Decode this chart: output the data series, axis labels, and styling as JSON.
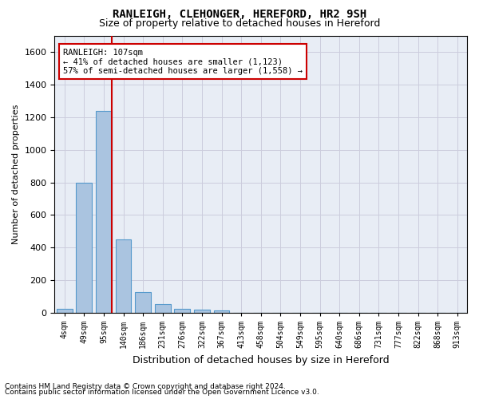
{
  "title": "RANLEIGH, CLEHONGER, HEREFORD, HR2 9SH",
  "subtitle": "Size of property relative to detached houses in Hereford",
  "xlabel": "Distribution of detached houses by size in Hereford",
  "ylabel": "Number of detached properties",
  "bar_values": [
    25,
    800,
    1240,
    450,
    125,
    55,
    25,
    18,
    15,
    0,
    0,
    0,
    0,
    0,
    0,
    0,
    0,
    0,
    0,
    0,
    0
  ],
  "bin_labels": [
    "4sqm",
    "49sqm",
    "95sqm",
    "140sqm",
    "186sqm",
    "231sqm",
    "276sqm",
    "322sqm",
    "367sqm",
    "413sqm",
    "458sqm",
    "504sqm",
    "549sqm",
    "595sqm",
    "640sqm",
    "686sqm",
    "731sqm",
    "777sqm",
    "822sqm",
    "868sqm",
    "913sqm"
  ],
  "bar_color": "#aac4e0",
  "bar_edge_color": "#5599cc",
  "vline_x_index": 2,
  "vline_color": "#cc0000",
  "annotation_text": "RANLEIGH: 107sqm\n← 41% of detached houses are smaller (1,123)\n57% of semi-detached houses are larger (1,558) →",
  "ylim": [
    0,
    1700
  ],
  "yticks": [
    0,
    200,
    400,
    600,
    800,
    1000,
    1200,
    1400,
    1600
  ],
  "grid_color": "#ccccdd",
  "bg_color": "#e8edf5",
  "footer1": "Contains HM Land Registry data © Crown copyright and database right 2024.",
  "footer2": "Contains public sector information licensed under the Open Government Licence v3.0."
}
